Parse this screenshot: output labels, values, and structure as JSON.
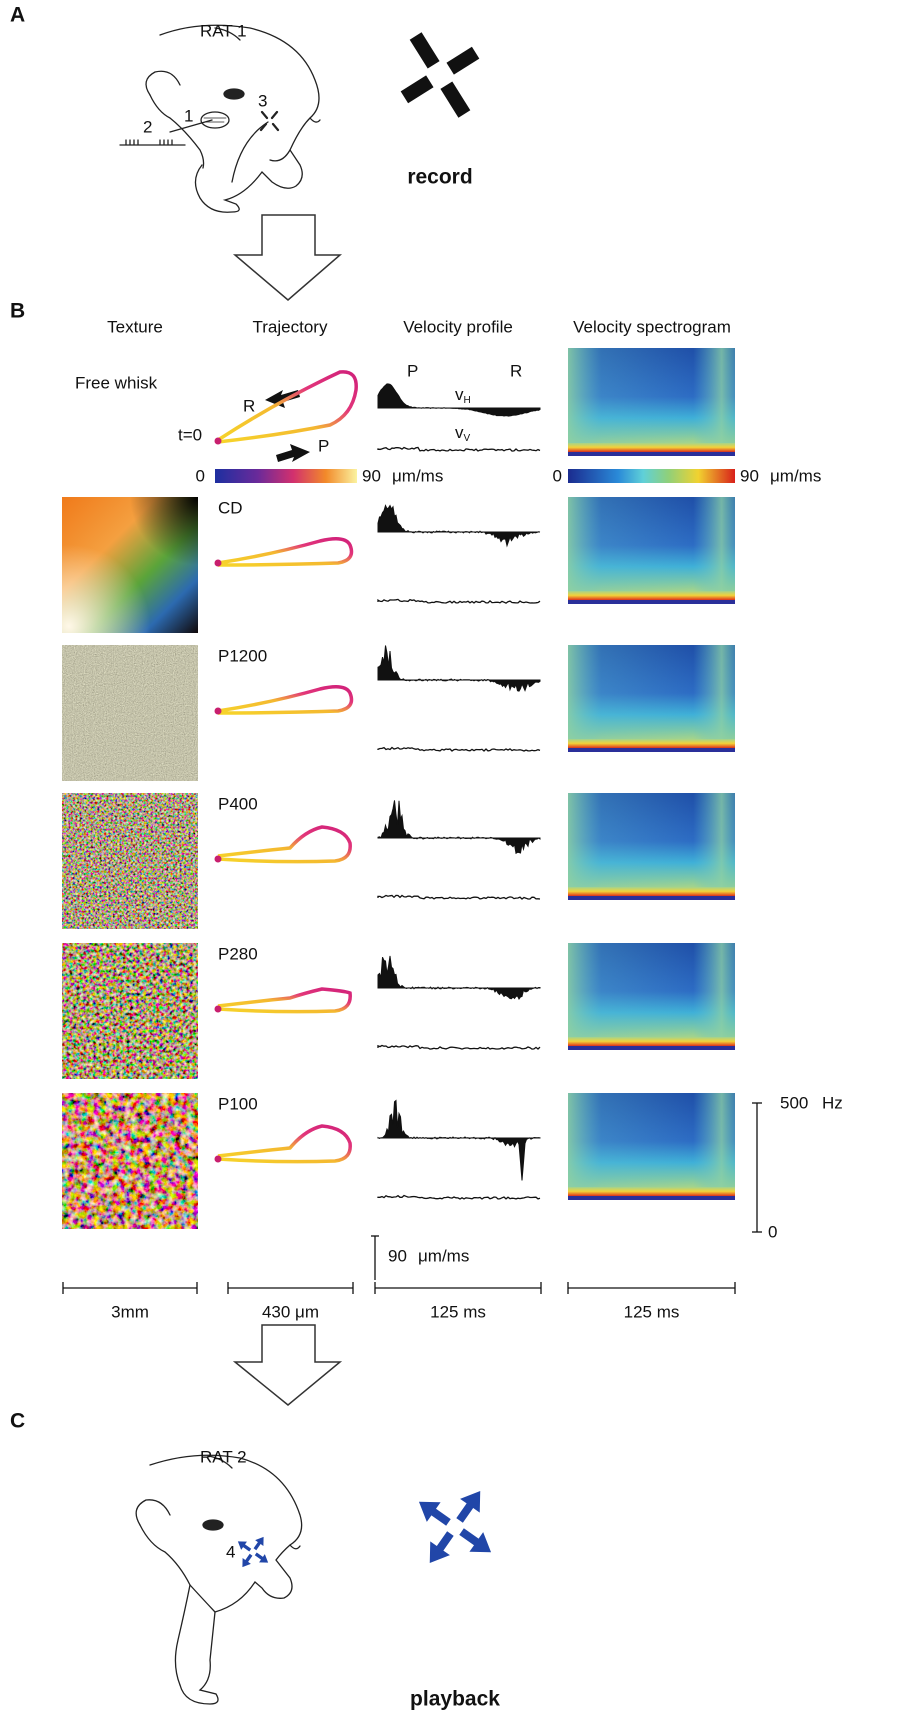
{
  "panels": {
    "a": "A",
    "b": "B",
    "c": "C"
  },
  "record": {
    "rat": "RAT 1",
    "labels": [
      "1",
      "2",
      "3"
    ],
    "caption": "record"
  },
  "columns": [
    "Texture",
    "Trajectory",
    "Velocity profile",
    "Velocity spectrogram"
  ],
  "free_whisk": {
    "label": "Free whisk",
    "retraction": "R",
    "protraction": "P",
    "start": "t=0",
    "velocity_p": "P",
    "velocity_r": "R",
    "vh": {
      "v": "v",
      "sub": "H"
    },
    "vv": {
      "v": "v",
      "sub": "V"
    }
  },
  "colorbars": [
    {
      "min": "0",
      "max": "90",
      "unit": "μm/ms"
    },
    {
      "min": "0",
      "max": "90",
      "unit": "μm/ms"
    }
  ],
  "textures": [
    "CD",
    "P1200",
    "P400",
    "P280",
    "P100"
  ],
  "spectrogram_axis": {
    "top": "500",
    "unit": "Hz",
    "bottom": "0"
  },
  "velocity_scale": {
    "value": "90",
    "unit": "μm/ms"
  },
  "scale_bars": [
    "3mm",
    "430 μm",
    "125 ms",
    "125 ms"
  ],
  "playback": {
    "rat": "RAT 2",
    "label": "4",
    "caption": "playback"
  }
}
